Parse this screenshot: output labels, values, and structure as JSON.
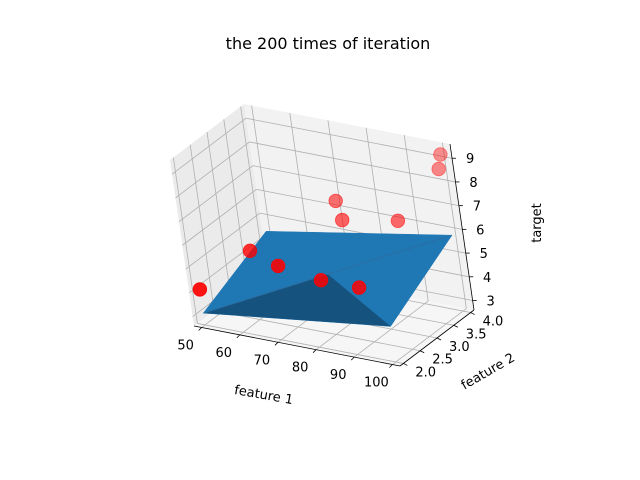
{
  "chart_data": {
    "type": "scatter",
    "projection": "3d",
    "title": "the 200 times of iteration",
    "xlabel": "feature 1",
    "ylabel": "feature 2",
    "zlabel": "target",
    "xlim": [
      48,
      102
    ],
    "ylim": [
      1.9,
      4.1
    ],
    "zlim": [
      2.6,
      9.6
    ],
    "xticks": [
      50,
      60,
      70,
      80,
      90,
      100
    ],
    "yticks": [
      2.0,
      2.5,
      3.0,
      3.5,
      4.0
    ],
    "zticks": [
      3,
      4,
      5,
      6,
      7,
      8,
      9
    ],
    "xtick_labels": [
      "50",
      "60",
      "70",
      "80",
      "90",
      "100"
    ],
    "ytick_labels": [
      "2.0",
      "2.5",
      "3.0",
      "3.5",
      "4.0"
    ],
    "ztick_labels": [
      "3",
      "4",
      "5",
      "6",
      "7",
      "8",
      "9"
    ],
    "grid": true,
    "points": [
      {
        "x": 50,
        "y": 2.0,
        "z": 4.1
      },
      {
        "x": 60,
        "y": 2.5,
        "z": 5.5
      },
      {
        "x": 70,
        "y": 2.2,
        "z": 5.5
      },
      {
        "x": 75,
        "y": 3.5,
        "z": 7.0
      },
      {
        "x": 78,
        "y": 3.3,
        "z": 6.5
      },
      {
        "x": 80,
        "y": 2.3,
        "z": 5.1
      },
      {
        "x": 90,
        "y": 2.3,
        "z": 5.1
      },
      {
        "x": 92,
        "y": 3.4,
        "z": 6.8
      },
      {
        "x": 100,
        "y": 4.0,
        "z": 9.2
      },
      {
        "x": 100,
        "y": 3.9,
        "z": 8.7
      }
    ],
    "surface": {
      "corners": [
        {
          "x": 50,
          "y": 2.0,
          "z": 3.1
        },
        {
          "x": 100,
          "y": 2.0,
          "z": 4.1
        },
        {
          "x": 100,
          "y": 4.0,
          "z": 5.8
        },
        {
          "x": 50,
          "y": 4.0,
          "z": 4.4
        }
      ]
    },
    "colors": {
      "points": "#ff0000",
      "surface": "#1f77b4",
      "surface_dark": "#0e3552",
      "pane_left": "#ebebeb",
      "pane_back": "#f2f2f2",
      "pane_floor": "#f6f6f6",
      "grid": "#b0b0b0"
    }
  }
}
